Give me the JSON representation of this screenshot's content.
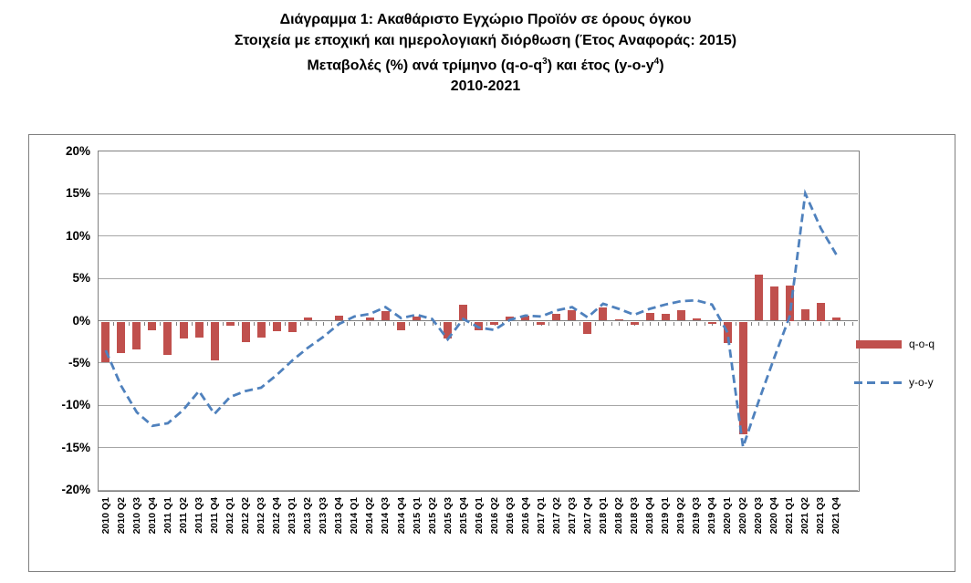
{
  "title": {
    "line1": "Διάγραμμα 1: Ακαθάριστο Εγχώριο Προϊόν σε όρους όγκου",
    "line2": "Στοιχεία με εποχική και ημερολογιακή διόρθωση (Έτος Αναφοράς: 2015)",
    "line3_pre": "Μεταβολές (%) ανά τρίμηνο (q-o-q",
    "line3_sup1": "3",
    "line3_mid": ") και έτος (y-o-y",
    "line3_sup2": "4",
    "line3_post": ")",
    "line4": "2010-2021"
  },
  "legend": {
    "qoq_label": "q-o-q",
    "yoy_label": "y-o-y"
  },
  "colors": {
    "bar": "#c0504d",
    "line": "#4f81bd",
    "gridline": "#a6a6a6",
    "axis": "#808080"
  },
  "chart_data": {
    "type": "bar+line",
    "title": "Διάγραμμα 1: Ακαθάριστο Εγχώριο Προϊόν σε όρους όγκου",
    "ylabel": "",
    "xlabel": "",
    "ylim": [
      -20,
      20
    ],
    "grid": true,
    "legend_position": "right",
    "ytick_labels": [
      "20%",
      "15%",
      "10%",
      "5%",
      "0%",
      "-5%",
      "-10%",
      "-15%",
      "-20%"
    ],
    "ytick_values": [
      20,
      15,
      10,
      5,
      0,
      -5,
      -10,
      -15,
      -20
    ],
    "categories": [
      "2010 Q1",
      "2010 Q2",
      "2010 Q3",
      "2010 Q4",
      "2011 Q1",
      "2011 Q2",
      "2011 Q3",
      "2011 Q4",
      "2012 Q1",
      "2012 Q2",
      "2012 Q3",
      "2012 Q4",
      "2013 Q1",
      "2013 Q2",
      "2013 Q3",
      "2013 Q4",
      "2014 Q1",
      "2014 Q2",
      "2014 Q3",
      "2014 Q4",
      "2015 Q1",
      "2015 Q2",
      "2015 Q3",
      "2015 Q4",
      "2016 Q1",
      "2016 Q2",
      "2016 Q3",
      "2016 Q4",
      "2017 Q1",
      "2017 Q2",
      "2017 Q3",
      "2017 Q4",
      "2018 Q1",
      "2018 Q2",
      "2018 Q3",
      "2018 Q4",
      "2019 Q1",
      "2019 Q2",
      "2019 Q3",
      "2019 Q4",
      "2020 Q1",
      "2020 Q2",
      "2020 Q3",
      "2020 Q4",
      "2021 Q1",
      "2021 Q2",
      "2021 Q3",
      "2021 Q4"
    ],
    "series": [
      {
        "name": "q-o-q",
        "type": "bar",
        "values": [
          -4.8,
          -3.7,
          -3.3,
          -1.0,
          -3.9,
          -2.0,
          -1.9,
          -4.6,
          -0.5,
          -2.4,
          -1.9,
          -1.1,
          -1.2,
          0.35,
          0.0,
          0.6,
          0.0,
          0.35,
          1.15,
          -1.0,
          0.5,
          0.0,
          -2.0,
          1.85,
          -1.0,
          -0.35,
          0.45,
          0.6,
          -0.4,
          0.8,
          1.2,
          -1.4,
          1.6,
          0.2,
          -0.4,
          0.9,
          0.8,
          1.2,
          0.3,
          -0.3,
          -2.5,
          -13.3,
          5.4,
          4.0,
          4.2,
          1.3,
          2.1,
          0.4
        ]
      },
      {
        "name": "y-o-y",
        "type": "line",
        "values": [
          -3.5,
          -7.7,
          -10.8,
          -12.4,
          -12.1,
          -10.5,
          -8.3,
          -11.0,
          -9.0,
          -8.3,
          -7.9,
          -6.4,
          -4.7,
          -3.2,
          -1.9,
          -0.4,
          0.5,
          0.8,
          1.6,
          0.3,
          0.7,
          0.2,
          -2.2,
          0.2,
          -0.8,
          -1.1,
          0.1,
          0.6,
          0.5,
          1.2,
          1.6,
          0.4,
          2.0,
          1.4,
          0.7,
          1.4,
          1.9,
          2.3,
          2.4,
          1.9,
          -1.4,
          -14.9,
          -9.5,
          -4.4,
          0.5,
          15.0,
          10.9,
          7.8
        ]
      }
    ]
  }
}
